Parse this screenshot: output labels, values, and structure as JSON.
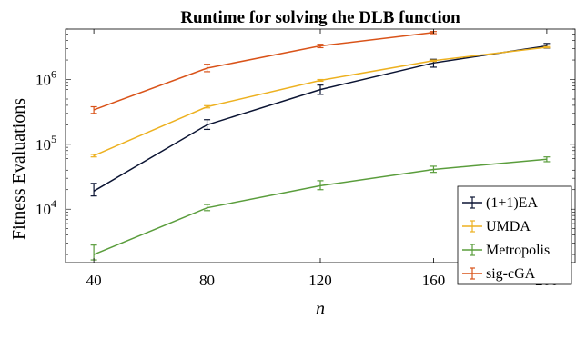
{
  "chart_data": {
    "type": "line",
    "title": "Runtime for solving the DLB function",
    "xlabel": "n",
    "ylabel": "Fitness Evaluations",
    "x": [
      40,
      80,
      120,
      160,
      200
    ],
    "xlim": [
      30,
      210
    ],
    "ylim": [
      1500,
      6000000
    ],
    "yscale": "log",
    "xticks": [
      "40",
      "80",
      "120",
      "160",
      "200"
    ],
    "yticks": [
      {
        "value": 10000,
        "base": "10",
        "exp": "4"
      },
      {
        "value": 100000,
        "base": "10",
        "exp": "5"
      },
      {
        "value": 1000000,
        "base": "10",
        "exp": "6"
      }
    ],
    "grid": false,
    "legend_position": "bottom-right",
    "series": [
      {
        "name": "(1+1)EA",
        "color": "#0b1433",
        "x": [
          40,
          80,
          120,
          160,
          200
        ],
        "values": [
          19000,
          200000,
          700000,
          1800000,
          3300000
        ],
        "err_low": [
          16000,
          170000,
          590000,
          1550000,
          3050000
        ],
        "err_high": [
          25000,
          240000,
          820000,
          2050000,
          3600000
        ]
      },
      {
        "name": "UMDA",
        "color": "#edb120",
        "x": [
          40,
          80,
          120,
          160,
          200
        ],
        "values": [
          67000,
          380000,
          970000,
          1950000,
          3150000
        ],
        "err_low": [
          64000,
          365000,
          940000,
          1900000,
          3080000
        ],
        "err_high": [
          70000,
          395000,
          1000000,
          2000000,
          3220000
        ]
      },
      {
        "name": "Metropolis",
        "color": "#5a9d3c",
        "x": [
          40,
          80,
          120,
          160,
          200
        ],
        "values": [
          2000,
          10500,
          23000,
          41000,
          59000
        ],
        "err_low": [
          1650,
          9500,
          20000,
          37000,
          54000
        ],
        "err_high": [
          2800,
          11800,
          27500,
          46000,
          64000
        ]
      },
      {
        "name": "sig-cGA",
        "color": "#d95319",
        "x": [
          40,
          80,
          120,
          160
        ],
        "values": [
          340000,
          1500000,
          3300000,
          5300000
        ],
        "err_low": [
          300000,
          1320000,
          3100000,
          5100000
        ],
        "err_high": [
          380000,
          1720000,
          3500000,
          5500000
        ]
      }
    ]
  }
}
